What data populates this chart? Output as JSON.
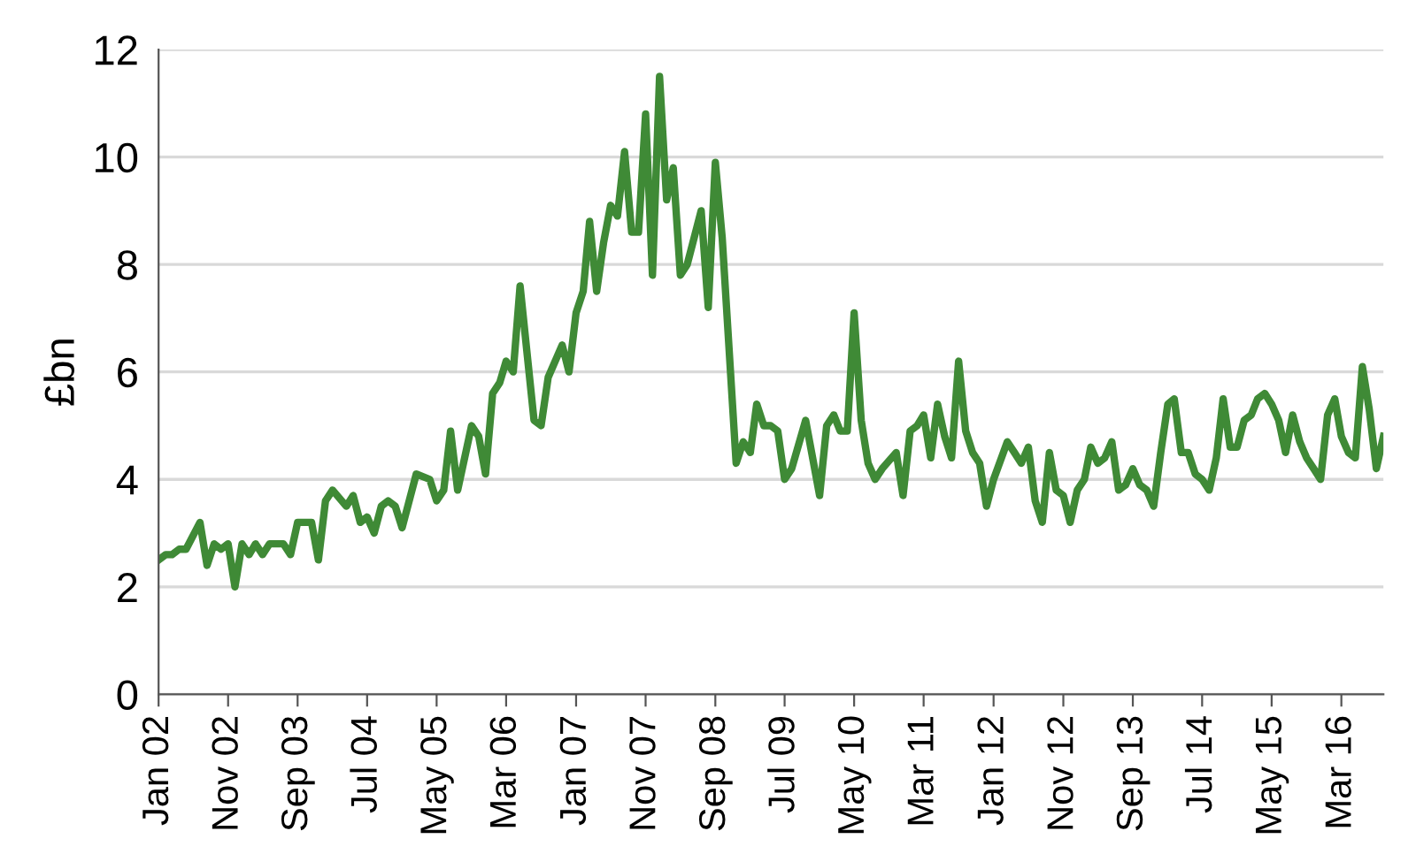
{
  "chart_data": {
    "type": "line",
    "ylabel": "£bn",
    "x": [
      "2002-01",
      "2002-02",
      "2002-03",
      "2002-04",
      "2002-05",
      "2002-07",
      "2002-08",
      "2002-09",
      "2002-10",
      "2002-11",
      "2002-12",
      "2003-01",
      "2003-02",
      "2003-03",
      "2003-04",
      "2003-05",
      "2003-07",
      "2003-08",
      "2003-09",
      "2003-11",
      "2003-12",
      "2004-01",
      "2004-02",
      "2004-04",
      "2004-05",
      "2004-06",
      "2004-07",
      "2004-08",
      "2004-09",
      "2004-10",
      "2004-11",
      "2004-12",
      "2005-02",
      "2005-04",
      "2005-05",
      "2005-06",
      "2005-07",
      "2005-08",
      "2005-10",
      "2005-11",
      "2005-12",
      "2006-01",
      "2006-02",
      "2006-03",
      "2006-04",
      "2006-05",
      "2006-07",
      "2006-08",
      "2006-09",
      "2006-11",
      "2006-12",
      "2007-01",
      "2007-02",
      "2007-03",
      "2007-04",
      "2007-05",
      "2007-06",
      "2007-07",
      "2007-08",
      "2007-09",
      "2007-10",
      "2007-11",
      "2007-12",
      "2008-01",
      "2008-02",
      "2008-03",
      "2008-04",
      "2008-05",
      "2008-07",
      "2008-08",
      "2008-09",
      "2008-10",
      "2008-12",
      "2009-01",
      "2009-02",
      "2009-03",
      "2009-04",
      "2009-05",
      "2009-06",
      "2009-07",
      "2009-08",
      "2009-10",
      "2009-12",
      "2010-01",
      "2010-02",
      "2010-03",
      "2010-04",
      "2010-05",
      "2010-06",
      "2010-07",
      "2010-08",
      "2010-09",
      "2010-11",
      "2010-12",
      "2011-01",
      "2011-02",
      "2011-03",
      "2011-04",
      "2011-05",
      "2011-06",
      "2011-07",
      "2011-08",
      "2011-09",
      "2011-10",
      "2011-11",
      "2011-12",
      "2012-01",
      "2012-03",
      "2012-04",
      "2012-05",
      "2012-06",
      "2012-07",
      "2012-08",
      "2012-09",
      "2012-10",
      "2012-11",
      "2012-12",
      "2013-01",
      "2013-02",
      "2013-03",
      "2013-04",
      "2013-05",
      "2013-06",
      "2013-07",
      "2013-08",
      "2013-09",
      "2013-10",
      "2013-11",
      "2013-12",
      "2014-01",
      "2014-02",
      "2014-03",
      "2014-04",
      "2014-05",
      "2014-06",
      "2014-07",
      "2014-08",
      "2014-09",
      "2014-10",
      "2014-11",
      "2014-12",
      "2015-01",
      "2015-02",
      "2015-03",
      "2015-04",
      "2015-05",
      "2015-06",
      "2015-07",
      "2015-08",
      "2015-09",
      "2015-10",
      "2015-11",
      "2015-12",
      "2016-01",
      "2016-02",
      "2016-03",
      "2016-04",
      "2016-05",
      "2016-06",
      "2016-07",
      "2016-08",
      "2016-09"
    ],
    "series": [
      {
        "color": "#3f8a36",
        "values": [
          2.5,
          2.6,
          2.6,
          2.7,
          2.7,
          3.2,
          2.4,
          2.8,
          2.7,
          2.8,
          2.0,
          2.8,
          2.6,
          2.8,
          2.6,
          2.8,
          2.8,
          2.6,
          3.2,
          3.2,
          2.5,
          3.6,
          3.8,
          3.5,
          3.7,
          3.2,
          3.3,
          3.0,
          3.5,
          3.6,
          3.5,
          3.1,
          4.1,
          4.0,
          3.6,
          3.8,
          4.9,
          3.8,
          5.0,
          4.8,
          4.1,
          5.6,
          5.8,
          6.2,
          6.0,
          7.6,
          5.1,
          5.0,
          5.9,
          6.5,
          6.0,
          7.1,
          7.5,
          8.8,
          7.5,
          8.4,
          9.1,
          8.9,
          10.1,
          8.6,
          8.6,
          10.8,
          7.8,
          11.5,
          9.2,
          9.8,
          7.8,
          8.0,
          9.0,
          7.2,
          9.9,
          8.5,
          4.3,
          4.7,
          4.5,
          5.4,
          5.0,
          5.0,
          4.9,
          4.0,
          4.2,
          5.1,
          3.7,
          5.0,
          5.2,
          4.9,
          4.9,
          7.1,
          5.1,
          4.3,
          4.0,
          4.2,
          4.5,
          3.7,
          4.9,
          5.0,
          5.2,
          4.4,
          5.4,
          4.8,
          4.4,
          6.2,
          4.9,
          4.5,
          4.3,
          3.5,
          4.0,
          4.7,
          4.5,
          4.3,
          4.6,
          3.6,
          3.2,
          4.5,
          3.8,
          3.7,
          3.2,
          3.8,
          4.0,
          4.6,
          4.3,
          4.4,
          4.7,
          3.8,
          3.9,
          4.2,
          3.9,
          3.8,
          3.5,
          4.5,
          5.4,
          5.5,
          4.5,
          4.5,
          4.1,
          4.0,
          3.8,
          4.4,
          5.5,
          4.6,
          4.6,
          5.1,
          5.2,
          5.5,
          5.6,
          5.4,
          5.1,
          4.5,
          5.2,
          4.7,
          4.4,
          4.2,
          4.0,
          5.2,
          5.5,
          4.8,
          4.5,
          4.4,
          6.1,
          5.3,
          4.2,
          4.8
        ]
      }
    ],
    "xlim": [
      "2002-01",
      "2016-09"
    ],
    "xticks": [
      {
        "value": "2002-01",
        "label": "Jan 02"
      },
      {
        "value": "2002-11",
        "label": "Nov 02"
      },
      {
        "value": "2003-09",
        "label": "Sep 03"
      },
      {
        "value": "2004-07",
        "label": "Jul 04"
      },
      {
        "value": "2005-05",
        "label": "May 05"
      },
      {
        "value": "2006-03",
        "label": "Mar 06"
      },
      {
        "value": "2007-01",
        "label": "Jan 07"
      },
      {
        "value": "2007-11",
        "label": "Nov 07"
      },
      {
        "value": "2008-09",
        "label": "Sep 08"
      },
      {
        "value": "2009-07",
        "label": "Jul 09"
      },
      {
        "value": "2010-05",
        "label": "May 10"
      },
      {
        "value": "2011-03",
        "label": "Mar 11"
      },
      {
        "value": "2012-01",
        "label": "Jan 12"
      },
      {
        "value": "2012-11",
        "label": "Nov 12"
      },
      {
        "value": "2013-09",
        "label": "Sep 13"
      },
      {
        "value": "2014-07",
        "label": "Jul 14"
      },
      {
        "value": "2015-05",
        "label": "May 15"
      },
      {
        "value": "2016-03",
        "label": "Mar 16"
      }
    ],
    "ylim": [
      0,
      12
    ],
    "yticks": [
      0,
      2,
      4,
      6,
      8,
      10,
      12
    ],
    "grid": "y",
    "marker": "none",
    "line_style": "solid"
  }
}
